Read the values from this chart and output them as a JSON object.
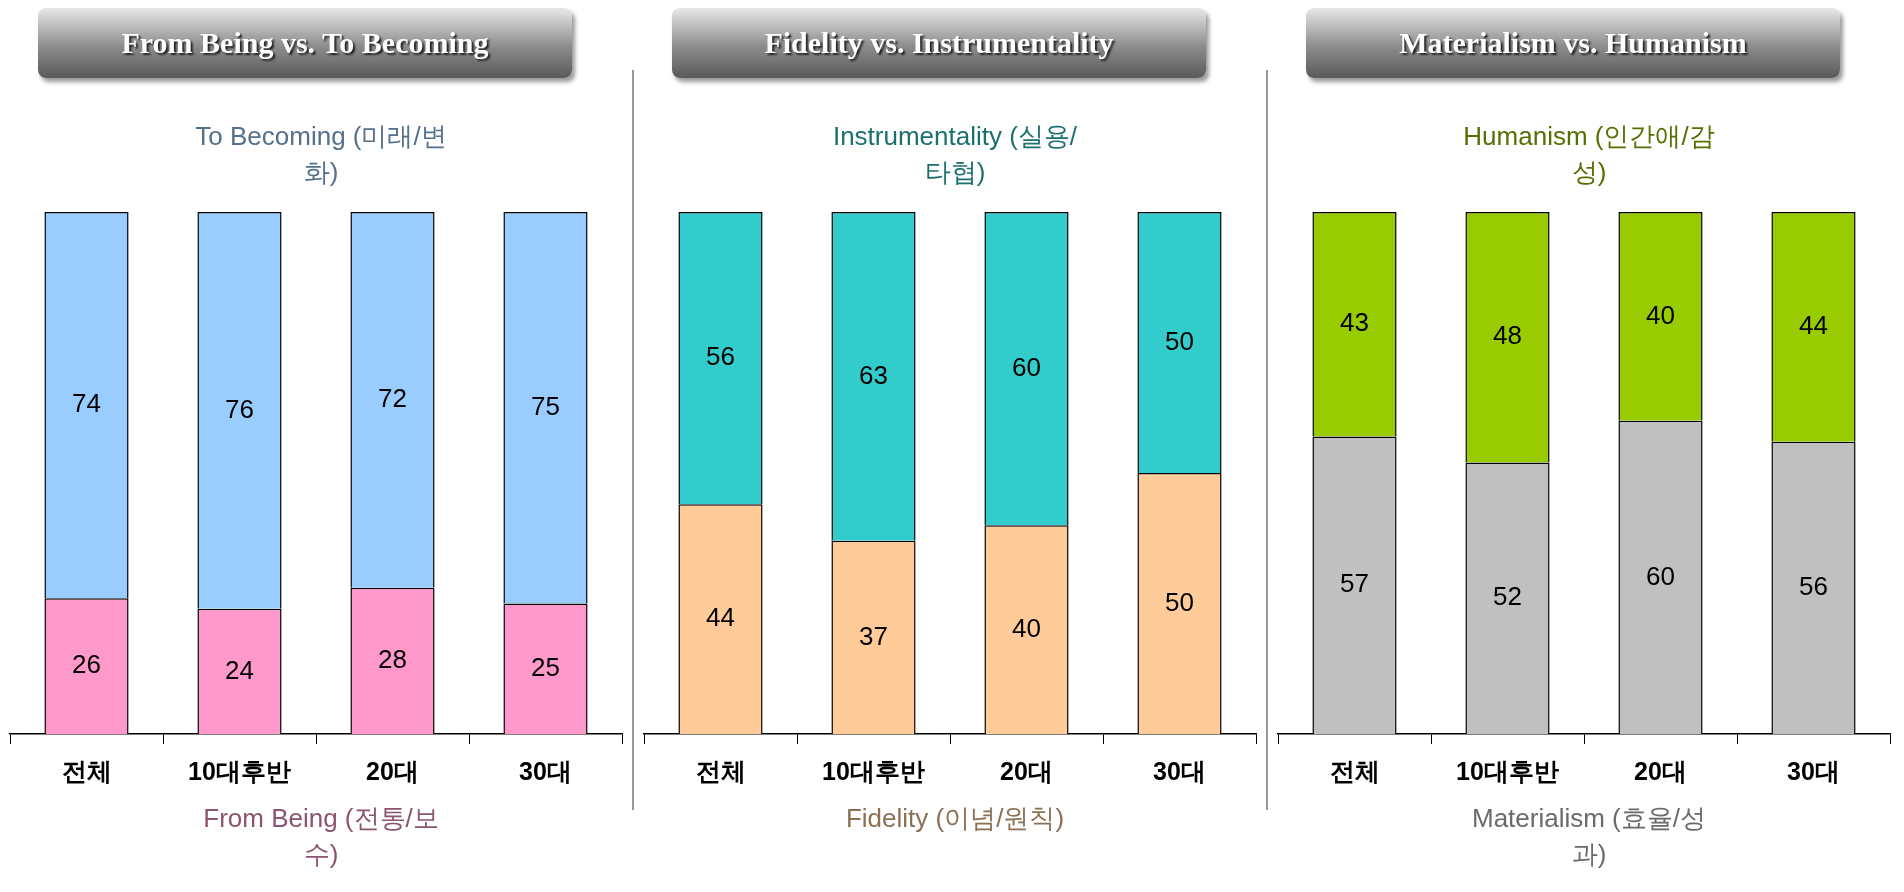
{
  "chart_data": [
    {
      "type": "bar",
      "title": "From Being vs. To Becoming",
      "stacked": true,
      "data_labels": true,
      "tick_labels": "x",
      "ylim": [
        0,
        100
      ],
      "categories": [
        "전체",
        "10대후반",
        "20대",
        "30대"
      ],
      "series": [
        {
          "name": "From Being (전통/보수)",
          "color": "#ff99cc",
          "values": [
            26,
            24,
            28,
            25
          ]
        },
        {
          "name": "To Becoming (미래/변화)",
          "color": "#99ccff",
          "values": [
            74,
            76,
            72,
            75
          ]
        }
      ]
    },
    {
      "type": "bar",
      "title": "Fidelity vs. Instrumentality",
      "stacked": true,
      "data_labels": true,
      "tick_labels": "x",
      "ylim": [
        0,
        100
      ],
      "categories": [
        "전체",
        "10대후반",
        "20대",
        "30대"
      ],
      "series": [
        {
          "name": "Fidelity (이념/원칙)",
          "color": "#ffcc99",
          "values": [
            44,
            37,
            40,
            50
          ]
        },
        {
          "name": "Instrumentality (실용/타협)",
          "color": "#33cccc",
          "values": [
            56,
            63,
            60,
            50
          ]
        }
      ]
    },
    {
      "type": "bar",
      "title": "Materialism vs. Humanism",
      "stacked": true,
      "data_labels": true,
      "tick_labels": "x",
      "ylim": [
        0,
        100
      ],
      "categories": [
        "전체",
        "10대후반",
        "20대",
        "30대"
      ],
      "series": [
        {
          "name": "Materialism (효율/성과)",
          "color": "#c0c0c0",
          "values": [
            57,
            52,
            60,
            56
          ]
        },
        {
          "name": "Humanism (인간애/감성)",
          "color": "#99cc00",
          "values": [
            43,
            48,
            40,
            44
          ]
        }
      ]
    }
  ]
}
